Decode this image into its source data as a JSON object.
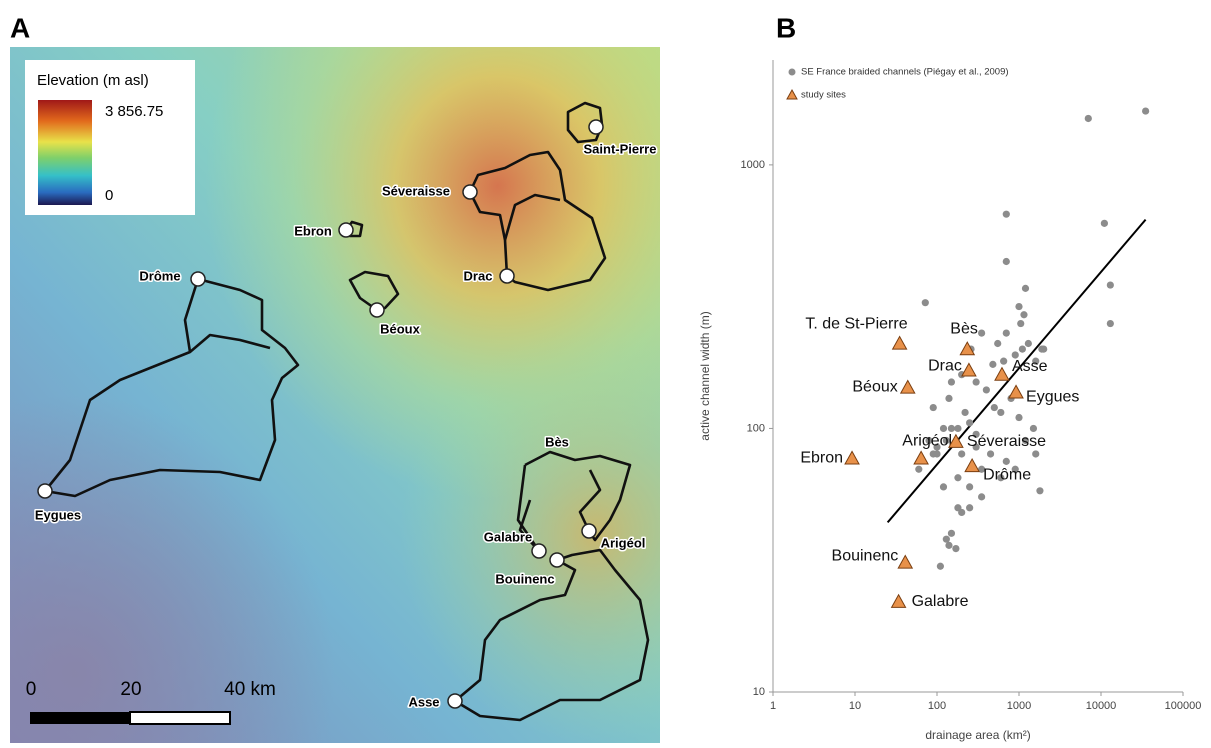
{
  "panel_labels": [
    "A",
    "B"
  ],
  "map": {
    "legend": {
      "title": "Elevation (m asl)",
      "max": "3 856.75",
      "min": "0"
    },
    "sites": [
      "Saint-Pierre",
      "Séveraisse",
      "Ebron",
      "Drôme",
      "Drac",
      "Béoux",
      "Bès",
      "Galabre",
      "Arigéol",
      "Bouinenc",
      "Eygues",
      "Asse"
    ],
    "scale_bar": [
      "0",
      "20",
      "40 km"
    ]
  },
  "chart_data": {
    "type": "scatter",
    "x_label": "drainage area (km²)",
    "y_label": "active channel width (m)",
    "xlim": [
      1,
      100000
    ],
    "ylim": [
      10,
      2500
    ],
    "xticks": [
      1,
      10,
      100,
      1000,
      10000,
      100000
    ],
    "yticks": [
      10,
      100,
      1000
    ],
    "xscale": "log",
    "yscale": "log",
    "series": [
      {
        "name": "SE France braided channels (Piégay et al., 2009)",
        "color": "#8c8c8c",
        "marker": "circle",
        "x": [
          7000,
          35000,
          11000,
          700,
          700,
          13000,
          13000,
          72,
          1200,
          1000,
          1150,
          1050,
          700,
          350,
          260,
          550,
          900,
          1100,
          1300,
          1900,
          1600,
          2000,
          650,
          480,
          200,
          150,
          140,
          300,
          400,
          500,
          800,
          600,
          1000,
          1500,
          120,
          90,
          80,
          100,
          300,
          250,
          220,
          180,
          150,
          130,
          200,
          300,
          450,
          700,
          1200,
          1600,
          900,
          600,
          350,
          250,
          180,
          120,
          90,
          60,
          250,
          180,
          150,
          130,
          350,
          200,
          170,
          140,
          110,
          100,
          1800
        ],
        "values": [
          1500,
          1600,
          600,
          650,
          430,
          350,
          250,
          300,
          340,
          290,
          270,
          250,
          230,
          230,
          200,
          210,
          190,
          200,
          210,
          200,
          180,
          200,
          180,
          175,
          160,
          150,
          130,
          150,
          140,
          120,
          130,
          115,
          110,
          100,
          100,
          120,
          90,
          85,
          95,
          105,
          115,
          100,
          100,
          90,
          80,
          85,
          80,
          75,
          90,
          80,
          70,
          65,
          70,
          60,
          65,
          60,
          80,
          70,
          50,
          50,
          40,
          38,
          55,
          48,
          35,
          36,
          30,
          80,
          58
        ]
      },
      {
        "name": "study sites",
        "color": "#e8914a",
        "marker": "triangle",
        "labels": [
          "T. de St-Pierre",
          "Bès",
          "Drac",
          "Asse",
          "Béoux",
          "Eygues",
          "Arigéol",
          "Séveraisse",
          "Ebron",
          "Drôme",
          "Bouinenc",
          "Galabre"
        ],
        "x": [
          35,
          234,
          245,
          620,
          44,
          920,
          64,
          170,
          9.2,
          268,
          41,
          34
        ],
        "values": [
          210,
          200,
          166,
          160,
          143,
          137,
          77,
          89,
          77,
          72,
          31,
          22
        ]
      }
    ],
    "trend_line": {
      "color": "#000000",
      "x": [
        25,
        35000
      ],
      "values": [
        44,
        620
      ]
    }
  }
}
